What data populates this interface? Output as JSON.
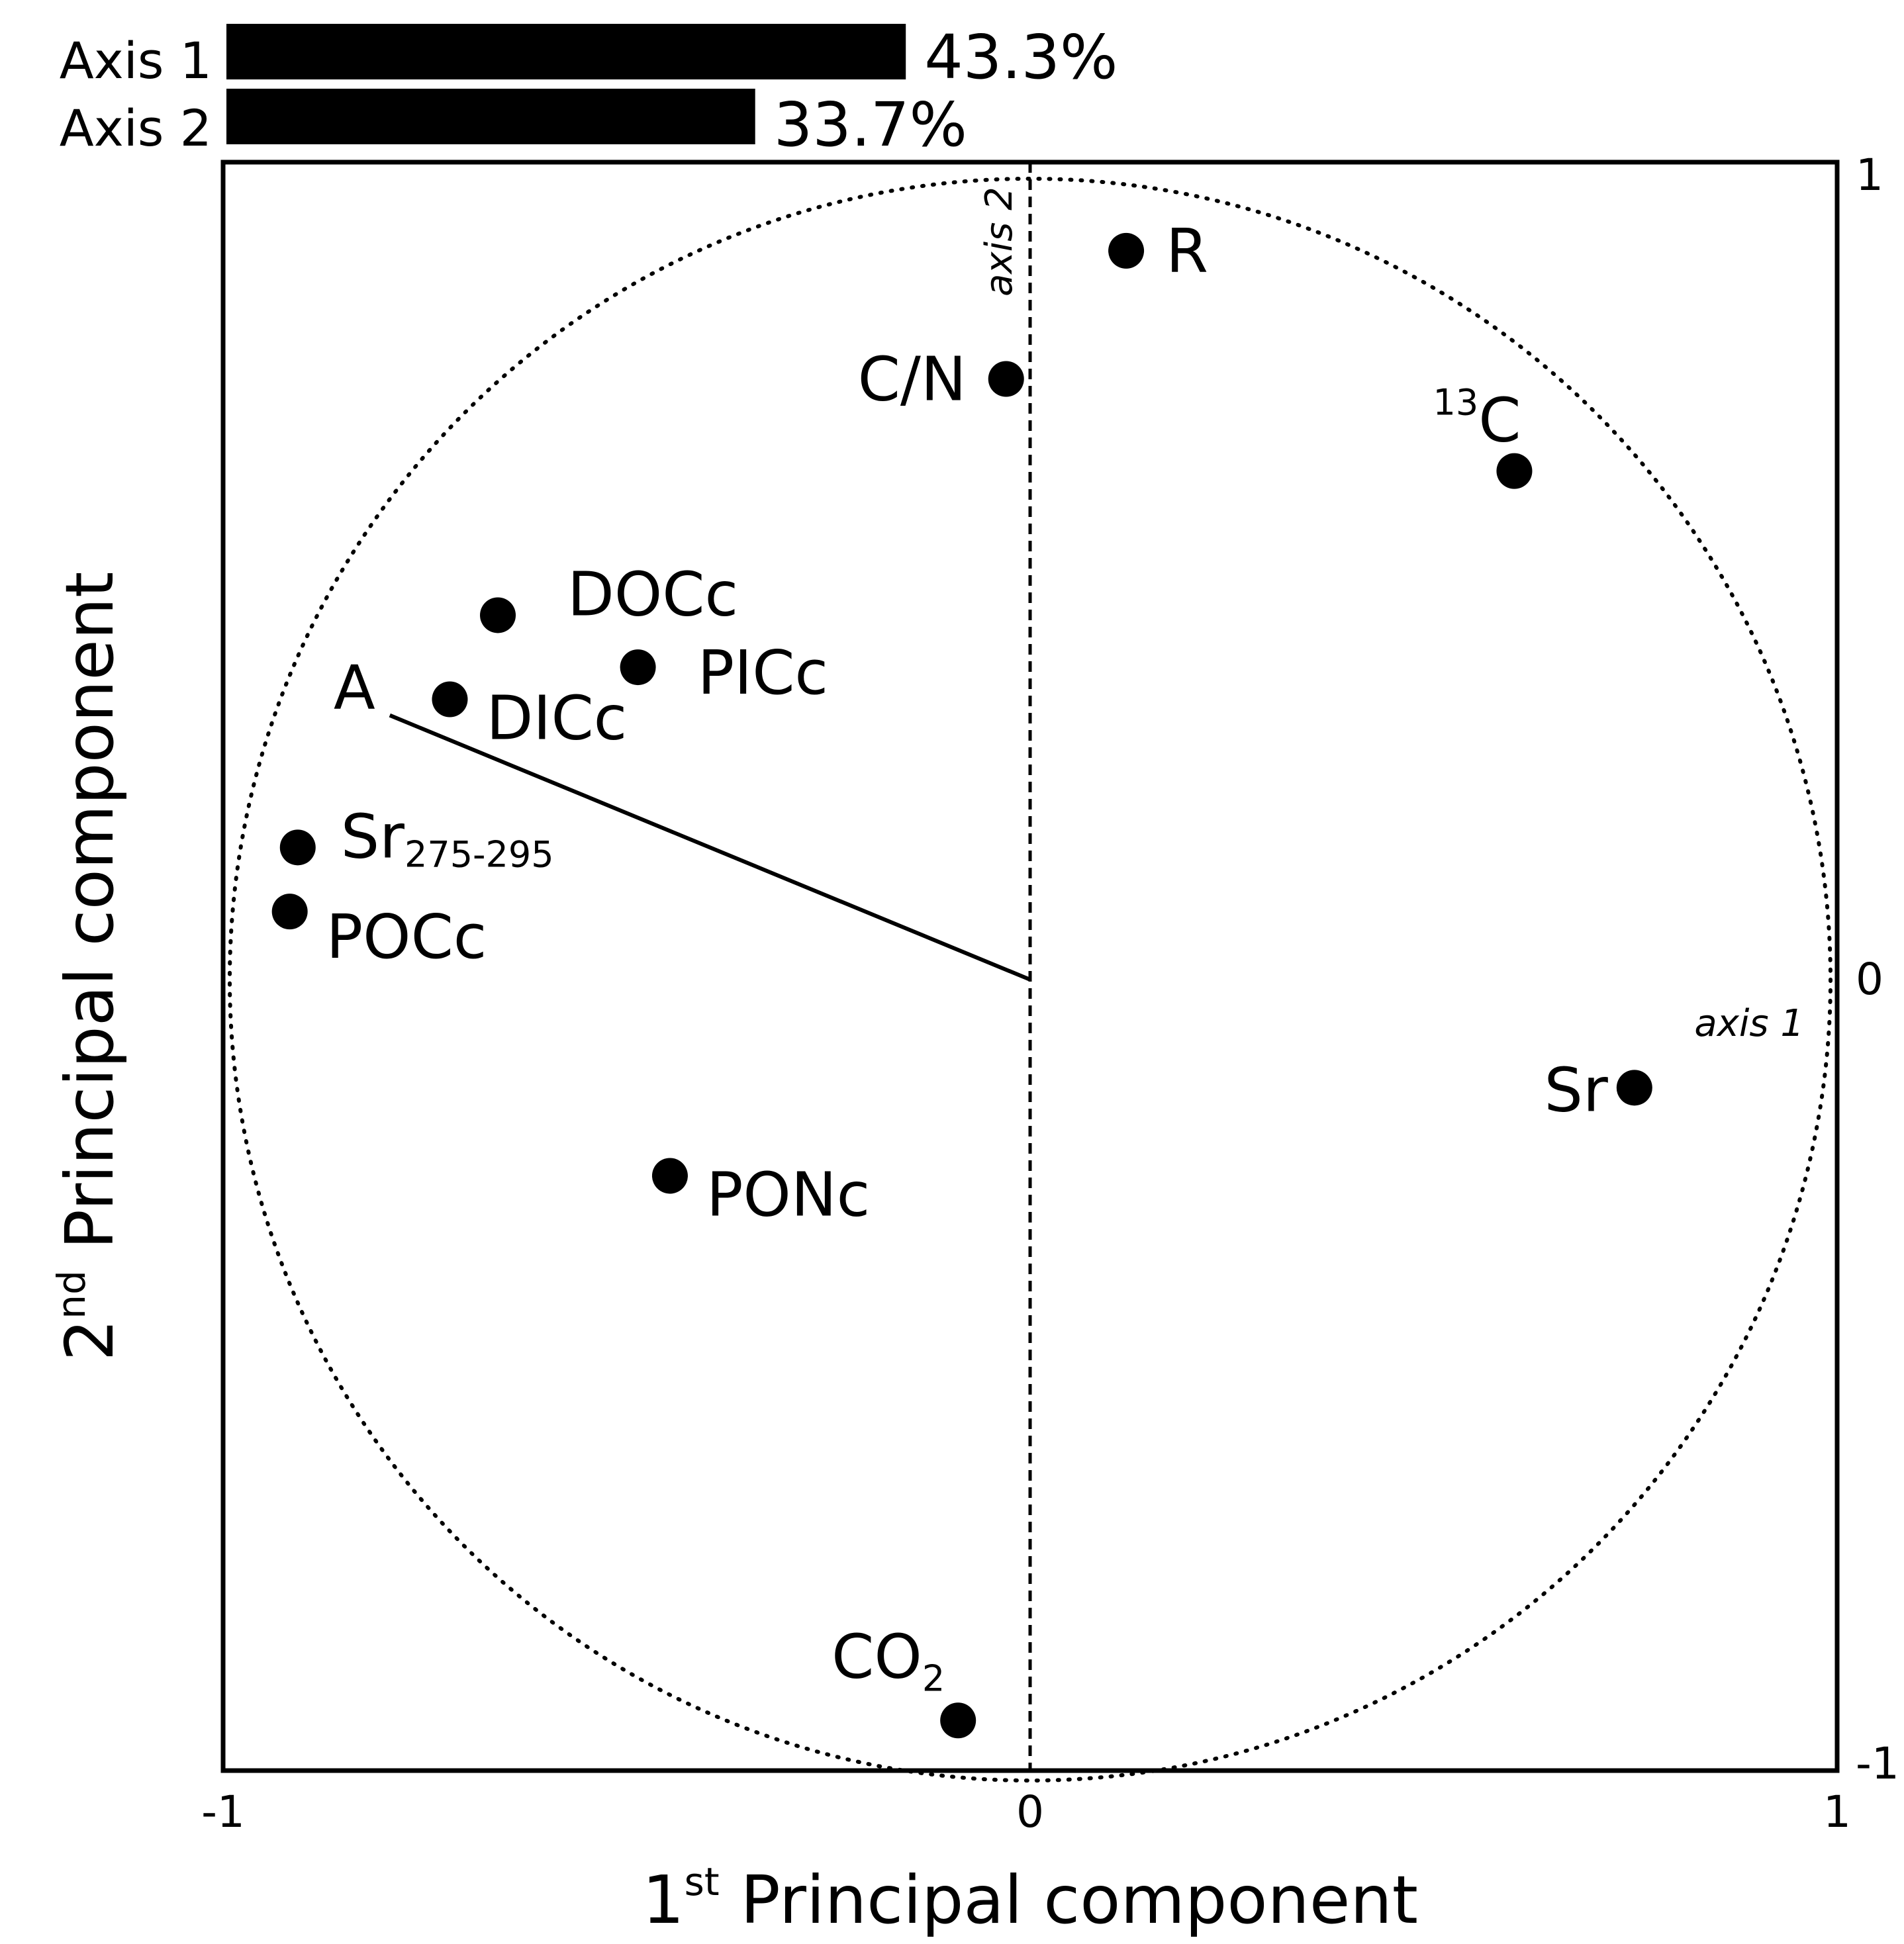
{
  "chart_data": {
    "type": "scatter",
    "xlabel": {
      "sup_prefix": "1",
      "sup": "st",
      "text": " Principal component"
    },
    "ylabel": {
      "sup_prefix": "2",
      "sup": "nd",
      "text": " Principal component"
    },
    "xlim": [
      -1,
      1
    ],
    "ylim": [
      -1,
      1
    ],
    "x_ticks": [
      {
        "value": -1,
        "label": "-1"
      },
      {
        "value": 0,
        "label": "0"
      },
      {
        "value": 1,
        "label": "1"
      }
    ],
    "y_ticks": [
      {
        "value": 1,
        "label": "1"
      },
      {
        "value": 0,
        "label": "0"
      },
      {
        "value": -1,
        "label": "-1"
      }
    ],
    "reference_lines": {
      "vertical": "axis 2",
      "horizontal": "axis 1"
    },
    "unit_circle": true,
    "explained_variance": [
      {
        "label": "Axis 1",
        "value": 43.3,
        "text": "43.3%"
      },
      {
        "label": "Axis 2",
        "value": 33.7,
        "text": "33.7%"
      }
    ],
    "points": [
      {
        "id": "R",
        "label": "R",
        "x": 0.12,
        "y": 0.91
      },
      {
        "id": "CN",
        "label": "C/N",
        "x": -0.03,
        "y": 0.75
      },
      {
        "id": "C13",
        "label": "C",
        "sup": "13",
        "x": 0.605,
        "y": 0.635
      },
      {
        "id": "DOCc",
        "label": "DOCc",
        "x": -0.665,
        "y": 0.455
      },
      {
        "id": "PICc",
        "label": "PICc",
        "x": -0.49,
        "y": 0.39
      },
      {
        "id": "DICc",
        "label": "DICc",
        "x": -0.725,
        "y": 0.35
      },
      {
        "id": "Sr275",
        "label": "Sr",
        "sub": "275-295",
        "x": -0.915,
        "y": 0.165
      },
      {
        "id": "POCc",
        "label": "POCc",
        "x": -0.925,
        "y": 0.085
      },
      {
        "id": "Sr",
        "label": "Sr",
        "x": 0.755,
        "y": -0.135
      },
      {
        "id": "PONc",
        "label": "PONc",
        "x": -0.45,
        "y": -0.245
      },
      {
        "id": "CO2",
        "label": "CO",
        "sub": "2",
        "x": -0.09,
        "y": -0.925
      }
    ],
    "vector": {
      "label": "A",
      "x": -0.8,
      "y": 0.33
    }
  }
}
